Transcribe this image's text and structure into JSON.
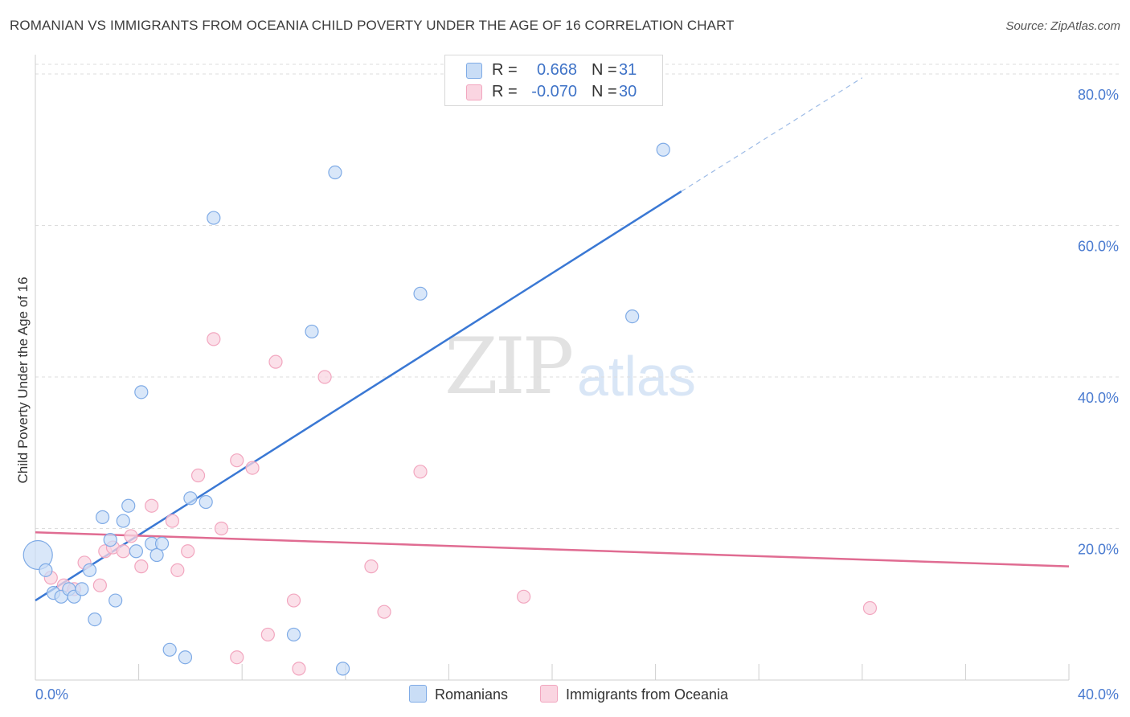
{
  "title": "ROMANIAN VS IMMIGRANTS FROM OCEANIA CHILD POVERTY UNDER THE AGE OF 16 CORRELATION CHART",
  "source": "Source: ZipAtlas.com",
  "watermark": {
    "zip": "ZIP",
    "atlas": "atlas"
  },
  "legend": {
    "r_label": "R =",
    "n_label": "N =",
    "rows": [
      {
        "r": "0.668",
        "n": "31"
      },
      {
        "r": "-0.070",
        "n": "30"
      }
    ]
  },
  "chart_data": {
    "type": "scatter",
    "title": "ROMANIAN VS IMMIGRANTS FROM OCEANIA CHILD POVERTY UNDER THE AGE OF 16 CORRELATION CHART",
    "xlabel": "",
    "ylabel": "Child Poverty Under the Age of 16",
    "xlim": [
      0,
      40
    ],
    "ylim": [
      0,
      80
    ],
    "x_tick_labels": [
      "0.0%",
      "40.0%"
    ],
    "y_ticks": [
      20,
      40,
      60,
      80
    ],
    "y_tick_labels": [
      "20.0%",
      "40.0%",
      "60.0%",
      "80.0%"
    ],
    "grid": true,
    "series": [
      {
        "name": "Romanians",
        "color": "#7fabe6",
        "fill": "#c9ddf6",
        "line_color": "#3a78d4",
        "trend": {
          "x0": 0,
          "y0": 10.5,
          "x1": 25,
          "y1": 64.5,
          "dashed_to_x": 32,
          "dashed_to_y": 79.5
        },
        "points": [
          [
            0.1,
            16.5,
            18
          ],
          [
            0.4,
            14.5,
            10
          ],
          [
            0.7,
            11.5,
            10
          ],
          [
            1.0,
            11.0,
            10
          ],
          [
            1.3,
            12.0,
            10
          ],
          [
            1.5,
            11.0,
            10
          ],
          [
            1.8,
            12.0,
            10
          ],
          [
            2.1,
            14.5,
            10
          ],
          [
            2.3,
            8.0,
            10
          ],
          [
            2.6,
            21.5,
            10
          ],
          [
            2.9,
            18.5,
            10
          ],
          [
            3.1,
            10.5,
            10
          ],
          [
            3.4,
            21.0,
            10
          ],
          [
            3.6,
            23.0,
            10
          ],
          [
            3.9,
            17.0,
            10
          ],
          [
            4.1,
            38.0,
            10
          ],
          [
            4.5,
            18.0,
            10
          ],
          [
            4.7,
            16.5,
            10
          ],
          [
            4.9,
            18.0,
            10
          ],
          [
            5.2,
            4.0,
            10
          ],
          [
            5.8,
            3.0,
            10
          ],
          [
            6.0,
            24.0,
            10
          ],
          [
            6.6,
            23.5,
            10
          ],
          [
            6.9,
            61.0,
            10
          ],
          [
            10.0,
            6.0,
            10
          ],
          [
            10.7,
            46.0,
            10
          ],
          [
            11.9,
            1.5,
            10
          ],
          [
            11.6,
            67.0,
            10
          ],
          [
            14.9,
            51.0,
            10
          ],
          [
            23.1,
            48.0,
            10
          ],
          [
            24.3,
            70.0,
            10
          ]
        ]
      },
      {
        "name": "Immigrants from Oceania",
        "color": "#f2a6bf",
        "fill": "#fad5e1",
        "line_color": "#e06c92",
        "trend": {
          "x0": 0,
          "y0": 19.5,
          "x1": 40,
          "y1": 15.0
        },
        "points": [
          [
            0.6,
            13.5,
            10
          ],
          [
            1.1,
            12.5,
            10
          ],
          [
            1.5,
            12.0,
            10
          ],
          [
            1.9,
            15.5,
            10
          ],
          [
            2.5,
            12.5,
            10
          ],
          [
            2.7,
            17.0,
            10
          ],
          [
            3.0,
            17.5,
            10
          ],
          [
            3.4,
            17.0,
            10
          ],
          [
            3.7,
            19.0,
            10
          ],
          [
            4.1,
            15.0,
            10
          ],
          [
            4.5,
            23.0,
            10
          ],
          [
            5.3,
            21.0,
            10
          ],
          [
            5.5,
            14.5,
            10
          ],
          [
            5.9,
            17.0,
            10
          ],
          [
            6.3,
            27.0,
            10
          ],
          [
            6.9,
            45.0,
            10
          ],
          [
            7.2,
            20.0,
            10
          ],
          [
            7.8,
            3.0,
            10
          ],
          [
            7.8,
            29.0,
            10
          ],
          [
            8.4,
            28.0,
            10
          ],
          [
            9.0,
            6.0,
            10
          ],
          [
            9.3,
            42.0,
            10
          ],
          [
            10.0,
            10.5,
            10
          ],
          [
            10.2,
            1.5,
            10
          ],
          [
            11.2,
            40.0,
            10
          ],
          [
            13.0,
            15.0,
            10
          ],
          [
            13.5,
            9.0,
            10
          ],
          [
            14.9,
            27.5,
            10
          ],
          [
            18.9,
            11.0,
            10
          ],
          [
            32.3,
            9.5,
            10
          ]
        ]
      }
    ]
  }
}
